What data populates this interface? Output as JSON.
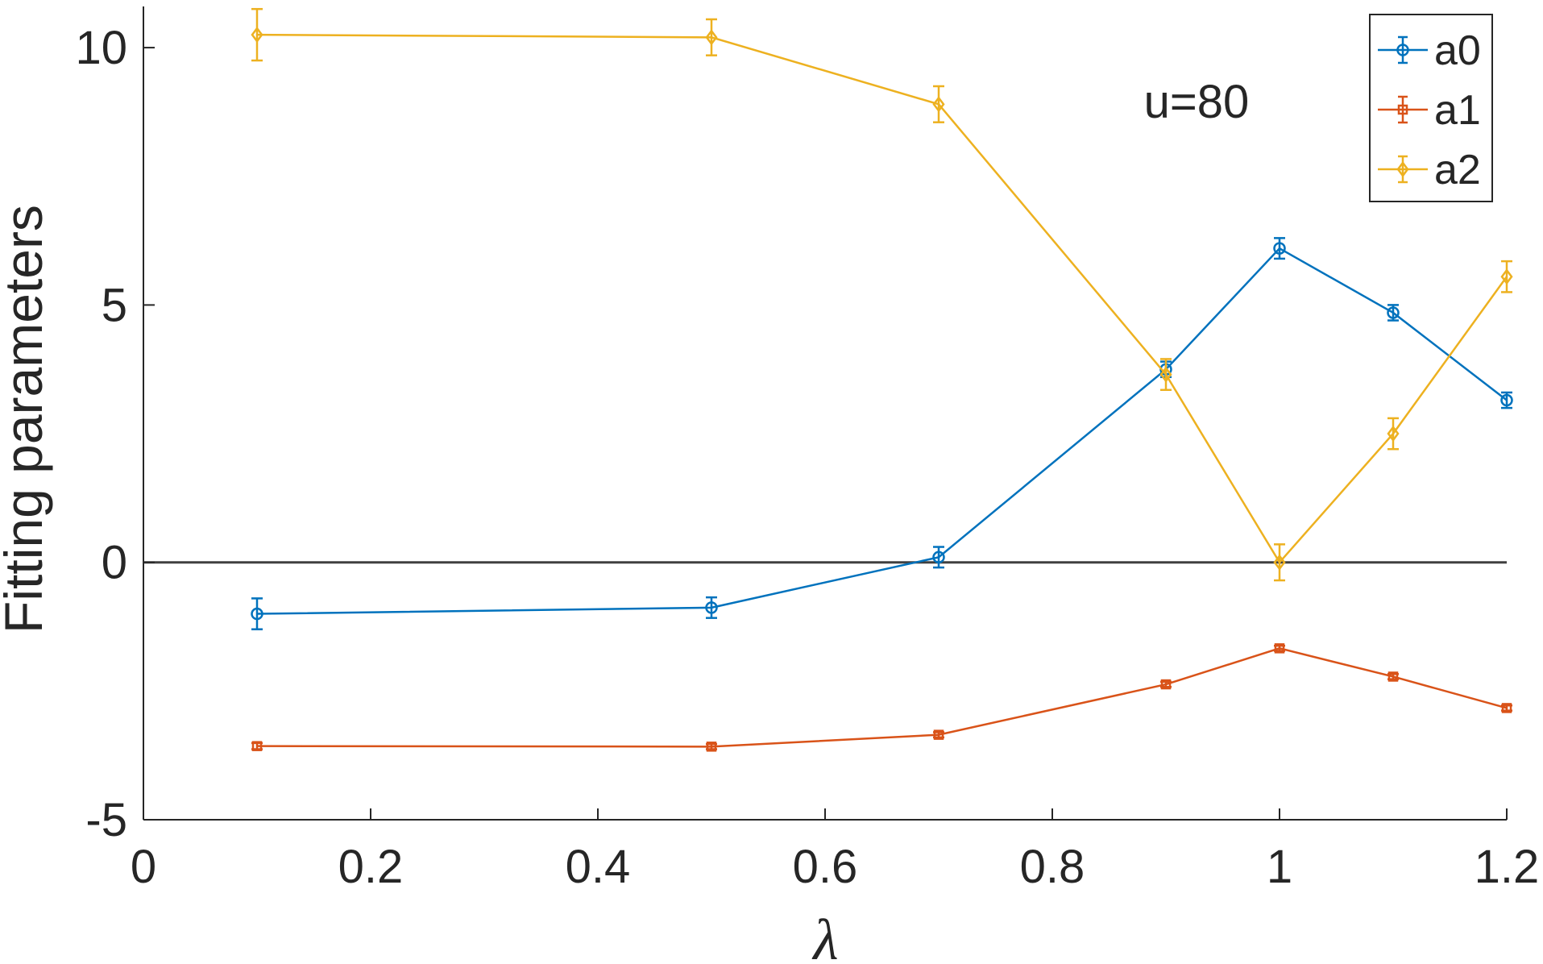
{
  "chart_data": {
    "type": "line",
    "title": "",
    "xlabel": "λ",
    "ylabel": "Fitting parameters",
    "xlim": [
      0,
      1.2
    ],
    "ylim": [
      -5,
      10.8
    ],
    "xticks": [
      0,
      0.2,
      0.4,
      0.6,
      0.8,
      1,
      1.2
    ],
    "xtick_labels": [
      "0",
      "0.2",
      "0.4",
      "0.6",
      "0.8",
      "1",
      "1.2"
    ],
    "yticks": [
      -5,
      0,
      5,
      10
    ],
    "ytick_labels": [
      "-5",
      "0",
      "5",
      "10"
    ],
    "grid": false,
    "legend_position": "top-right",
    "annotation": "u=80",
    "reference_line": {
      "y": 0,
      "color": "#404040"
    },
    "x": [
      0.1,
      0.5,
      0.7,
      0.9,
      1.0,
      1.1,
      1.2
    ],
    "series": [
      {
        "name": "a0",
        "color": "#0072BD",
        "marker": "circle",
        "values": [
          -1.0,
          -0.88,
          0.1,
          3.75,
          6.1,
          4.85,
          3.15
        ],
        "errors": [
          0.3,
          0.2,
          0.2,
          0.15,
          0.2,
          0.15,
          0.15
        ]
      },
      {
        "name": "a1",
        "color": "#D95319",
        "marker": "square",
        "values": [
          -3.57,
          -3.58,
          -3.35,
          -2.37,
          -1.67,
          -2.22,
          -2.83
        ],
        "errors": [
          0.06,
          0.05,
          0.05,
          0.05,
          0.05,
          0.05,
          0.05
        ]
      },
      {
        "name": "a2",
        "color": "#EDB120",
        "marker": "diamond",
        "values": [
          10.25,
          10.2,
          8.9,
          3.65,
          0.0,
          2.5,
          5.55
        ],
        "errors": [
          0.5,
          0.35,
          0.35,
          0.3,
          0.35,
          0.3,
          0.3
        ]
      }
    ]
  }
}
